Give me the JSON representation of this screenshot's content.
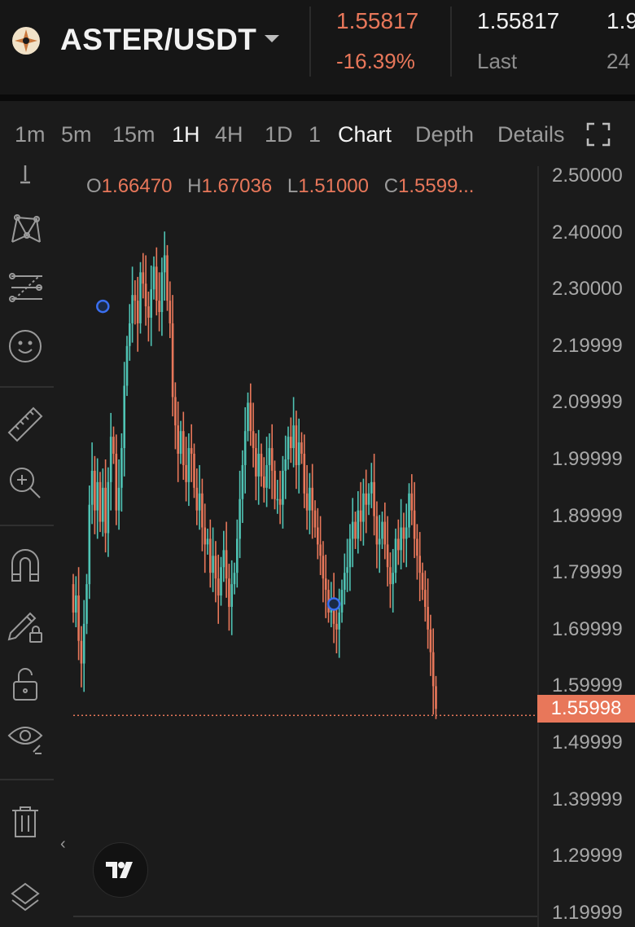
{
  "header": {
    "pair": "ASTER/USDT",
    "price": "1.55817",
    "change": "-16.39%",
    "last_value": "1.55817",
    "last_label": "Last",
    "cut_value": "1.9",
    "cut_label": "24"
  },
  "tabs": [
    "1m",
    "5m",
    "15m",
    "1H",
    "4H",
    "1D",
    "1",
    "Chart",
    "Depth",
    "Details"
  ],
  "active_tabs": [
    "1H",
    "Chart"
  ],
  "toolbar_icons": [
    "crosshair-icon",
    "pattern-icon",
    "fib-retracement-icon",
    "emoji-icon",
    "ruler-icon",
    "zoom-in-icon",
    "magnet-icon",
    "lock-drawing-icon",
    "unlock-icon",
    "eye-icon",
    "trash-icon",
    "layers-icon"
  ],
  "ohlc": {
    "o_label": "O",
    "o": "1.66470",
    "h_label": "H",
    "h": "1.67036",
    "l_label": "L",
    "l": "1.51000",
    "c_label": "C",
    "c": "1.5599..."
  },
  "colors": {
    "up": "#4fc3b4",
    "down": "#e8775a",
    "background": "#1b1b1b"
  },
  "chart_data": {
    "type": "candlestick",
    "y_tick_labels": [
      "2.50000",
      "2.40000",
      "2.30000",
      "2.19999",
      "2.09999",
      "1.99999",
      "1.89999",
      "1.79999",
      "1.69999",
      "1.59999",
      "1.49999",
      "1.39999",
      "1.29999",
      "1.19999"
    ],
    "ylim": [
      1.18,
      2.51
    ],
    "current_price": "1.55998",
    "markers": [
      {
        "candle_index": 11,
        "price": 2.27
      },
      {
        "candle_index": 97,
        "price": 1.745
      }
    ],
    "close_prices": [
      1.73,
      1.76,
      1.68,
      1.64,
      1.71,
      1.78,
      1.92,
      1.98,
      1.91,
      1.96,
      1.89,
      1.95,
      1.87,
      1.96,
      2.04,
      2.01,
      1.91,
      1.95,
      2.02,
      2.13,
      2.2,
      2.24,
      2.29,
      2.28,
      2.24,
      2.33,
      2.31,
      2.27,
      2.25,
      2.3,
      2.34,
      2.28,
      2.26,
      2.33,
      2.36,
      2.28,
      2.24,
      2.11,
      2.06,
      2.01,
      2.05,
      1.99,
      1.96,
      2.02,
      2.01,
      1.95,
      1.91,
      1.94,
      1.88,
      1.85,
      1.86,
      1.8,
      1.83,
      1.79,
      1.76,
      1.81,
      1.84,
      1.79,
      1.74,
      1.78,
      1.8,
      1.86,
      1.93,
      1.99,
      2.05,
      2.1,
      2.05,
      2.02,
      1.97,
      2.01,
      1.97,
      1.95,
      1.99,
      2.02,
      1.98,
      1.93,
      1.93,
      1.92,
      1.98,
      2.0,
      2.04,
      2.02,
      2.06,
      1.99,
      2.03,
      2.01,
      1.94,
      1.91,
      1.95,
      1.91,
      1.88,
      1.85,
      1.83,
      1.79,
      1.77,
      1.73,
      1.75,
      1.71,
      1.7,
      1.73,
      1.77,
      1.8,
      1.81,
      1.86,
      1.89,
      1.86,
      1.91,
      1.89,
      1.94,
      1.92,
      1.94,
      1.96,
      1.9,
      1.85,
      1.86,
      1.89,
      1.85,
      1.81,
      1.78,
      1.8,
      1.86,
      1.84,
      1.88,
      1.86,
      1.88,
      1.94,
      1.91,
      1.86,
      1.83,
      1.8,
      1.77,
      1.74,
      1.7,
      1.66,
      1.6,
      1.56
    ]
  }
}
